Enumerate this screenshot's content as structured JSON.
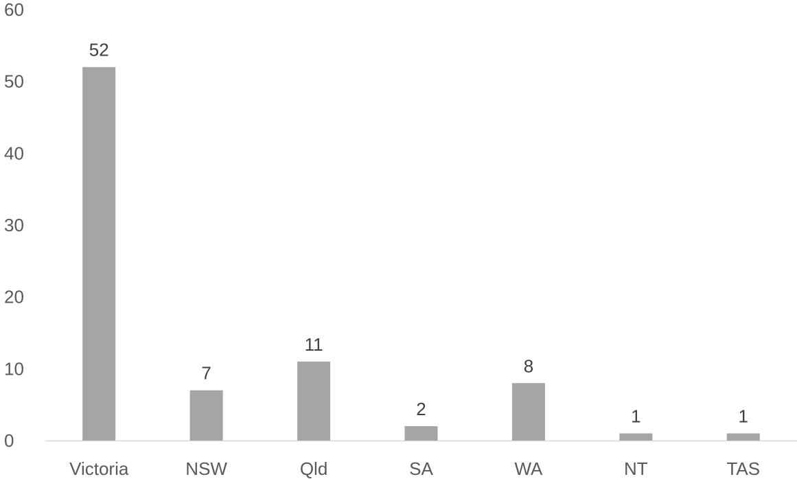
{
  "chart_data": {
    "type": "bar",
    "categories": [
      "Victoria",
      "NSW",
      "Qld",
      "SA",
      "WA",
      "NT",
      "TAS"
    ],
    "values": [
      52,
      7,
      11,
      2,
      8,
      1,
      1
    ],
    "title": "",
    "xlabel": "",
    "ylabel": "",
    "ylim": [
      0,
      60
    ],
    "yticks": [
      0,
      10,
      20,
      30,
      40,
      50,
      60
    ],
    "grid": false,
    "data_labels": true,
    "bar_color": "#a5a5a5",
    "axis_color": "#d9d9d9"
  }
}
